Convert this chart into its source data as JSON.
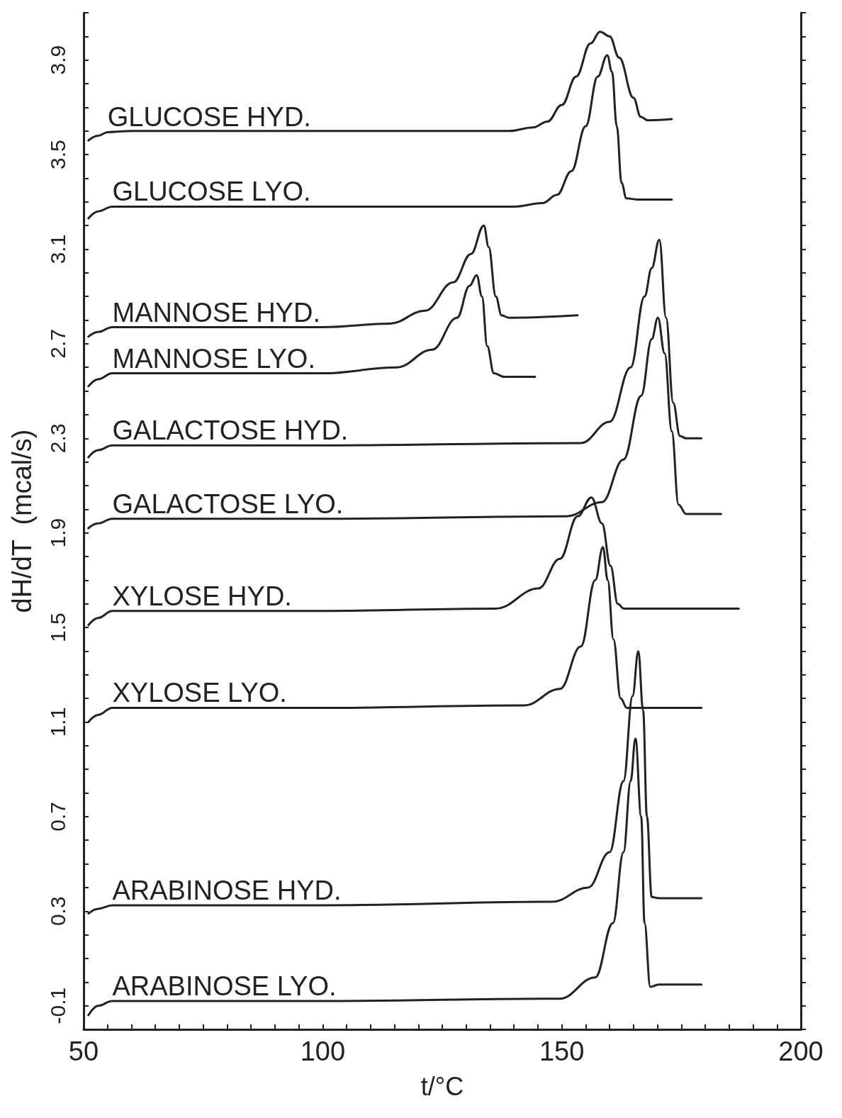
{
  "chart_data": {
    "type": "line",
    "xlabel": "t/°C",
    "ylabel": "dH/dT  (mcal/s)",
    "xlim": [
      50,
      200
    ],
    "ylim": [
      -0.2,
      4.1
    ],
    "xticks": [
      50,
      {
        "value": 55,
        "label": null
      },
      {
        "value": 60,
        "label": null
      },
      {
        "value": 65,
        "label": null
      },
      {
        "value": 70,
        "label": null
      },
      {
        "value": 75,
        "label": null
      },
      {
        "value": 80,
        "label": null
      },
      {
        "value": 85,
        "label": null
      },
      {
        "value": 90,
        "label": null
      },
      {
        "value": 95,
        "label": null
      },
      100,
      {
        "value": 105,
        "label": null
      },
      {
        "value": 110,
        "label": null
      },
      {
        "value": 115,
        "label": null
      },
      {
        "value": 120,
        "label": null
      },
      {
        "value": 125,
        "label": null
      },
      {
        "value": 130,
        "label": null
      },
      {
        "value": 135,
        "label": null
      },
      {
        "value": 140,
        "label": null
      },
      {
        "value": 145,
        "label": null
      },
      150,
      {
        "value": 155,
        "label": null
      },
      {
        "value": 160,
        "label": null
      },
      {
        "value": 165,
        "label": null
      },
      {
        "value": 170,
        "label": null
      },
      {
        "value": 175,
        "label": null
      },
      {
        "value": 180,
        "label": null
      },
      {
        "value": 185,
        "label": null
      },
      {
        "value": 190,
        "label": null
      },
      {
        "value": 195,
        "label": null
      },
      200
    ],
    "yticks": [
      {
        "value": -0.2,
        "label": null
      },
      -0.1,
      {
        "value": 0,
        "label": null
      },
      {
        "value": 0.1,
        "label": null
      },
      {
        "value": 0.2,
        "label": null
      },
      0.3,
      {
        "value": 0.4,
        "label": null
      },
      {
        "value": 0.5,
        "label": null
      },
      {
        "value": 0.6,
        "label": null
      },
      0.7,
      {
        "value": 0.8,
        "label": null
      },
      {
        "value": 0.9,
        "label": null
      },
      {
        "value": 1.0,
        "label": null
      },
      1.1,
      {
        "value": 1.2,
        "label": null
      },
      {
        "value": 1.3,
        "label": null
      },
      {
        "value": 1.4,
        "label": null
      },
      1.5,
      {
        "value": 1.6,
        "label": null
      },
      {
        "value": 1.7,
        "label": null
      },
      {
        "value": 1.8,
        "label": null
      },
      1.9,
      {
        "value": 2.0,
        "label": null
      },
      {
        "value": 2.1,
        "label": null
      },
      {
        "value": 2.2,
        "label": null
      },
      2.3,
      {
        "value": 2.4,
        "label": null
      },
      {
        "value": 2.5,
        "label": null
      },
      {
        "value": 2.6,
        "label": null
      },
      2.7,
      {
        "value": 2.8,
        "label": null
      },
      {
        "value": 2.9,
        "label": null
      },
      {
        "value": 3.0,
        "label": null
      },
      3.1,
      {
        "value": 3.2,
        "label": null
      },
      {
        "value": 3.3,
        "label": null
      },
      {
        "value": 3.4,
        "label": null
      },
      3.5,
      {
        "value": 3.6,
        "label": null
      },
      {
        "value": 3.7,
        "label": null
      },
      {
        "value": 3.8,
        "label": null
      },
      3.9,
      {
        "value": 4.0,
        "label": null
      },
      {
        "value": 4.1,
        "label": null
      }
    ],
    "grid": false,
    "legend": false,
    "marker": "none",
    "line_style": "solid",
    "series": [
      {
        "name": "GLUCOSE HYD.",
        "color": "#222222",
        "x": [
          51,
          53,
          55,
          60,
          100,
          139,
          144,
          147,
          150,
          153,
          156,
          158,
          160,
          162,
          165,
          166.5,
          168,
          173
        ],
        "values": [
          3.56,
          3.58,
          3.595,
          3.6,
          3.6,
          3.6,
          3.615,
          3.64,
          3.71,
          3.83,
          3.97,
          4.02,
          4.0,
          3.91,
          3.74,
          3.66,
          3.645,
          3.65
        ]
      },
      {
        "name": "GLUCOSE LYO.",
        "color": "#222222",
        "x": [
          51,
          53,
          56,
          100,
          140,
          146,
          149,
          152,
          155,
          157.5,
          159.5,
          160.5,
          161.5,
          162.5,
          163.5,
          166,
          173
        ],
        "values": [
          3.23,
          3.26,
          3.28,
          3.28,
          3.28,
          3.295,
          3.33,
          3.43,
          3.62,
          3.83,
          3.92,
          3.85,
          3.62,
          3.38,
          3.315,
          3.31,
          3.31
        ]
      },
      {
        "name": "MANNOSE HYD.",
        "color": "#222222",
        "x": [
          51,
          53,
          56,
          100,
          114,
          121.4,
          127.3,
          131,
          133.7,
          134.7,
          136.2,
          137.4,
          139,
          153.3
        ],
        "values": [
          2.73,
          2.75,
          2.77,
          2.77,
          2.785,
          2.84,
          2.96,
          3.08,
          3.2,
          3.11,
          2.9,
          2.82,
          2.81,
          2.82
        ]
      },
      {
        "name": "MANNOSE LYO.",
        "color": "#222222",
        "x": [
          51,
          53,
          56,
          100,
          115.5,
          122.9,
          128.1,
          130.7,
          132.2,
          133.3,
          134.4,
          135.8,
          138,
          144.4
        ],
        "values": [
          2.52,
          2.55,
          2.575,
          2.575,
          2.6,
          2.675,
          2.81,
          2.945,
          2.99,
          2.9,
          2.69,
          2.575,
          2.56,
          2.56
        ]
      },
      {
        "name": "GALACTOSE HYD.",
        "color": "#222222",
        "x": [
          51,
          53,
          56,
          100,
          154,
          160,
          164.4,
          167.3,
          168.8,
          170.4,
          171.8,
          173.3,
          174.7,
          176,
          179.2
        ],
        "values": [
          2.22,
          2.25,
          2.27,
          2.27,
          2.28,
          2.37,
          2.6,
          2.9,
          3.02,
          3.14,
          2.81,
          2.45,
          2.31,
          2.3,
          2.3
        ]
      },
      {
        "name": "GALACTOSE LYO.",
        "color": "#222222",
        "x": [
          51,
          53,
          56,
          100,
          151,
          158.4,
          162.9,
          166.6,
          168.8,
          170.1,
          171.5,
          173,
          174.4,
          176,
          183.3
        ],
        "values": [
          1.92,
          1.94,
          1.96,
          1.96,
          1.97,
          2.03,
          2.21,
          2.48,
          2.72,
          2.81,
          2.66,
          2.33,
          2.02,
          1.98,
          1.98
        ]
      },
      {
        "name": "XYLOSE HYD.",
        "color": "#222222",
        "x": [
          51,
          53,
          56,
          100,
          136.2,
          145.1,
          149.6,
          153.3,
          156.2,
          158.4,
          160.2,
          161.7,
          163,
          187
        ],
        "values": [
          1.51,
          1.54,
          1.57,
          1.57,
          1.58,
          1.665,
          1.79,
          1.97,
          2.05,
          1.94,
          1.76,
          1.6,
          1.58,
          1.58
        ]
      },
      {
        "name": "XYLOSE LYO.",
        "color": "#222222",
        "x": [
          51,
          53,
          56,
          100,
          142.1,
          149.6,
          154,
          157,
          158.6,
          159.6,
          160.8,
          162.3,
          163.6,
          179.2
        ],
        "values": [
          1.1,
          1.13,
          1.16,
          1.16,
          1.17,
          1.24,
          1.42,
          1.7,
          1.84,
          1.7,
          1.45,
          1.2,
          1.16,
          1.16
        ]
      },
      {
        "name": "ARABINOSE HYD.",
        "color": "#222222",
        "x": [
          51,
          53,
          56,
          100,
          148,
          155.5,
          160,
          162.9,
          164.8,
          166,
          167,
          167.8,
          168.8,
          170.3,
          179.2
        ],
        "values": [
          0.29,
          0.31,
          0.325,
          0.325,
          0.34,
          0.4,
          0.55,
          0.85,
          1.21,
          1.4,
          1.15,
          0.7,
          0.36,
          0.355,
          0.355
        ]
      },
      {
        "name": "ARABINOSE LYO.",
        "color": "#222222",
        "x": [
          51,
          53,
          56,
          100,
          149.6,
          157,
          160.7,
          162.9,
          164.4,
          165.4,
          166.6,
          167.3,
          168.5,
          170.3,
          179.2
        ],
        "values": [
          -0.14,
          -0.1,
          -0.08,
          -0.08,
          -0.07,
          0.02,
          0.25,
          0.55,
          0.85,
          1.03,
          0.7,
          0.25,
          -0.02,
          -0.01,
          -0.01
        ]
      }
    ]
  }
}
